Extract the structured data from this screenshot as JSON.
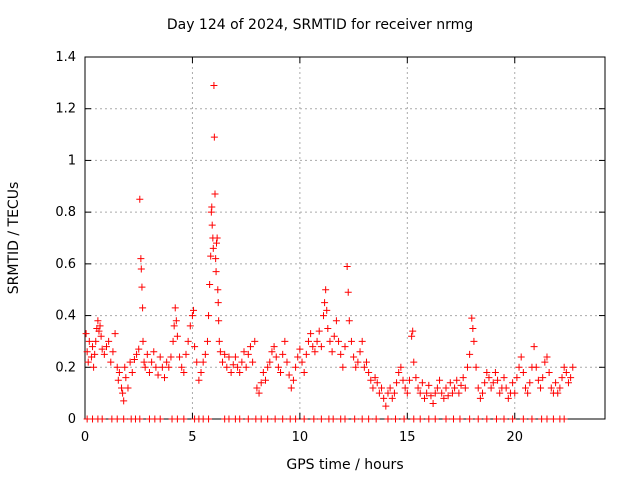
{
  "chart_data": {
    "type": "scatter",
    "title": "Day 124 of 2024, SRMTID for receiver nrmg",
    "xlabel": "GPS time / hours",
    "ylabel": "SRMTID / TECUs",
    "xlim": [
      0,
      24.2
    ],
    "ylim": [
      0,
      1.4
    ],
    "xticks": [
      0,
      5,
      10,
      15,
      20
    ],
    "xtick_labels": [
      "0",
      "5",
      "10",
      "15",
      "20"
    ],
    "yticks": [
      0,
      0.2,
      0.4,
      0.6,
      0.8,
      1.0,
      1.2,
      1.4
    ],
    "ytick_labels": [
      "0",
      "0.2",
      "0.4",
      "0.6",
      "0.8",
      "1",
      "1.2",
      "1.4"
    ],
    "grid": true,
    "marker": "+",
    "color": "#ff0000",
    "series": [
      {
        "name": "SRMTID",
        "points": [
          [
            0.05,
            0.33
          ],
          [
            0.1,
            0.26
          ],
          [
            0.15,
            0.22
          ],
          [
            0.2,
            0.3
          ],
          [
            0.3,
            0.24
          ],
          [
            0.35,
            0.28
          ],
          [
            0.4,
            0.2
          ],
          [
            0.45,
            0.25
          ],
          [
            0.5,
            0.3
          ],
          [
            0.55,
            0.35
          ],
          [
            0.6,
            0.38
          ],
          [
            0.65,
            0.34
          ],
          [
            0.7,
            0.36
          ],
          [
            0.75,
            0.32
          ],
          [
            0.8,
            0.27
          ],
          [
            0.9,
            0.25
          ],
          [
            1.0,
            0.28
          ],
          [
            1.1,
            0.3
          ],
          [
            1.2,
            0.22
          ],
          [
            1.3,
            0.26
          ],
          [
            1.4,
            0.33
          ],
          [
            1.5,
            0.2
          ],
          [
            1.55,
            0.15
          ],
          [
            1.6,
            0.18
          ],
          [
            1.7,
            0.12
          ],
          [
            1.75,
            0.1
          ],
          [
            1.8,
            0.07
          ],
          [
            1.85,
            0.2
          ],
          [
            1.9,
            0.16
          ],
          [
            2.0,
            0.12
          ],
          [
            2.1,
            0.22
          ],
          [
            2.2,
            0.18
          ],
          [
            2.3,
            0.23
          ],
          [
            2.4,
            0.25
          ],
          [
            2.5,
            0.27
          ],
          [
            2.55,
            0.85
          ],
          [
            2.6,
            0.62
          ],
          [
            2.62,
            0.58
          ],
          [
            2.65,
            0.51
          ],
          [
            2.68,
            0.43
          ],
          [
            2.7,
            0.3
          ],
          [
            2.75,
            0.22
          ],
          [
            2.8,
            0.2
          ],
          [
            2.9,
            0.25
          ],
          [
            3.0,
            0.18
          ],
          [
            3.1,
            0.22
          ],
          [
            3.2,
            0.26
          ],
          [
            3.3,
            0.2
          ],
          [
            3.4,
            0.17
          ],
          [
            3.5,
            0.24
          ],
          [
            3.6,
            0.2
          ],
          [
            3.7,
            0.16
          ],
          [
            3.8,
            0.22
          ],
          [
            3.9,
            0.2
          ],
          [
            4.0,
            0.24
          ],
          [
            4.1,
            0.3
          ],
          [
            4.15,
            0.36
          ],
          [
            4.2,
            0.43
          ],
          [
            4.25,
            0.38
          ],
          [
            4.3,
            0.32
          ],
          [
            4.4,
            0.24
          ],
          [
            4.5,
            0.2
          ],
          [
            4.6,
            0.18
          ],
          [
            4.7,
            0.25
          ],
          [
            4.8,
            0.3
          ],
          [
            4.9,
            0.36
          ],
          [
            5.0,
            0.4
          ],
          [
            5.05,
            0.42
          ],
          [
            5.1,
            0.28
          ],
          [
            5.2,
            0.22
          ],
          [
            5.3,
            0.15
          ],
          [
            5.4,
            0.18
          ],
          [
            5.5,
            0.22
          ],
          [
            5.6,
            0.25
          ],
          [
            5.7,
            0.3
          ],
          [
            5.75,
            0.4
          ],
          [
            5.8,
            0.52
          ],
          [
            5.85,
            0.63
          ],
          [
            5.88,
            0.8
          ],
          [
            5.9,
            0.82
          ],
          [
            5.92,
            0.75
          ],
          [
            5.95,
            0.7
          ],
          [
            5.97,
            0.66
          ],
          [
            6.0,
            1.29
          ],
          [
            6.02,
            1.09
          ],
          [
            6.05,
            0.87
          ],
          [
            6.08,
            0.62
          ],
          [
            6.1,
            0.57
          ],
          [
            6.12,
            0.68
          ],
          [
            6.15,
            0.7
          ],
          [
            6.18,
            0.5
          ],
          [
            6.2,
            0.45
          ],
          [
            6.22,
            0.38
          ],
          [
            6.25,
            0.3
          ],
          [
            6.3,
            0.26
          ],
          [
            6.4,
            0.22
          ],
          [
            6.5,
            0.25
          ],
          [
            6.6,
            0.2
          ],
          [
            6.7,
            0.24
          ],
          [
            6.8,
            0.18
          ],
          [
            6.9,
            0.21
          ],
          [
            7.0,
            0.24
          ],
          [
            7.1,
            0.2
          ],
          [
            7.2,
            0.18
          ],
          [
            7.3,
            0.22
          ],
          [
            7.4,
            0.26
          ],
          [
            7.5,
            0.2
          ],
          [
            7.6,
            0.25
          ],
          [
            7.7,
            0.28
          ],
          [
            7.8,
            0.22
          ],
          [
            7.9,
            0.3
          ],
          [
            8.0,
            0.12
          ],
          [
            8.1,
            0.1
          ],
          [
            8.2,
            0.14
          ],
          [
            8.3,
            0.18
          ],
          [
            8.4,
            0.15
          ],
          [
            8.5,
            0.2
          ],
          [
            8.6,
            0.22
          ],
          [
            8.7,
            0.26
          ],
          [
            8.8,
            0.28
          ],
          [
            8.9,
            0.24
          ],
          [
            9.0,
            0.2
          ],
          [
            9.1,
            0.18
          ],
          [
            9.2,
            0.25
          ],
          [
            9.3,
            0.3
          ],
          [
            9.4,
            0.22
          ],
          [
            9.5,
            0.17
          ],
          [
            9.6,
            0.12
          ],
          [
            9.7,
            0.15
          ],
          [
            9.8,
            0.2
          ],
          [
            9.9,
            0.24
          ],
          [
            10.0,
            0.27
          ],
          [
            10.1,
            0.22
          ],
          [
            10.2,
            0.18
          ],
          [
            10.3,
            0.25
          ],
          [
            10.4,
            0.3
          ],
          [
            10.5,
            0.33
          ],
          [
            10.6,
            0.28
          ],
          [
            10.7,
            0.26
          ],
          [
            10.8,
            0.3
          ],
          [
            10.9,
            0.34
          ],
          [
            11.0,
            0.28
          ],
          [
            11.1,
            0.4
          ],
          [
            11.15,
            0.45
          ],
          [
            11.2,
            0.5
          ],
          [
            11.25,
            0.42
          ],
          [
            11.3,
            0.35
          ],
          [
            11.4,
            0.3
          ],
          [
            11.5,
            0.26
          ],
          [
            11.6,
            0.32
          ],
          [
            11.7,
            0.38
          ],
          [
            11.8,
            0.3
          ],
          [
            11.9,
            0.25
          ],
          [
            12.0,
            0.2
          ],
          [
            12.1,
            0.28
          ],
          [
            12.2,
            0.59
          ],
          [
            12.25,
            0.49
          ],
          [
            12.3,
            0.38
          ],
          [
            12.4,
            0.3
          ],
          [
            12.5,
            0.24
          ],
          [
            12.6,
            0.2
          ],
          [
            12.7,
            0.22
          ],
          [
            12.8,
            0.26
          ],
          [
            12.9,
            0.3
          ],
          [
            13.0,
            0.2
          ],
          [
            13.1,
            0.22
          ],
          [
            13.2,
            0.18
          ],
          [
            13.3,
            0.15
          ],
          [
            13.4,
            0.12
          ],
          [
            13.5,
            0.16
          ],
          [
            13.6,
            0.14
          ],
          [
            13.7,
            0.1
          ],
          [
            13.8,
            0.12
          ],
          [
            13.9,
            0.08
          ],
          [
            14.0,
            0.05
          ],
          [
            14.1,
            0.1
          ],
          [
            14.2,
            0.12
          ],
          [
            14.3,
            0.08
          ],
          [
            14.4,
            0.1
          ],
          [
            14.5,
            0.14
          ],
          [
            14.6,
            0.18
          ],
          [
            14.7,
            0.2
          ],
          [
            14.8,
            0.15
          ],
          [
            14.9,
            0.12
          ],
          [
            15.0,
            0.1
          ],
          [
            15.1,
            0.15
          ],
          [
            15.2,
            0.32
          ],
          [
            15.25,
            0.34
          ],
          [
            15.3,
            0.22
          ],
          [
            15.4,
            0.16
          ],
          [
            15.5,
            0.12
          ],
          [
            15.6,
            0.1
          ],
          [
            15.7,
            0.14
          ],
          [
            15.8,
            0.08
          ],
          [
            15.9,
            0.1
          ],
          [
            16.0,
            0.13
          ],
          [
            16.1,
            0.09
          ],
          [
            16.2,
            0.06
          ],
          [
            16.3,
            0.1
          ],
          [
            16.4,
            0.12
          ],
          [
            16.5,
            0.15
          ],
          [
            16.6,
            0.1
          ],
          [
            16.7,
            0.08
          ],
          [
            16.8,
            0.12
          ],
          [
            16.9,
            0.09
          ],
          [
            17.0,
            0.14
          ],
          [
            17.1,
            0.1
          ],
          [
            17.2,
            0.12
          ],
          [
            17.3,
            0.15
          ],
          [
            17.4,
            0.1
          ],
          [
            17.5,
            0.13
          ],
          [
            17.6,
            0.16
          ],
          [
            17.7,
            0.12
          ],
          [
            17.8,
            0.2
          ],
          [
            17.9,
            0.25
          ],
          [
            18.0,
            0.39
          ],
          [
            18.05,
            0.35
          ],
          [
            18.1,
            0.3
          ],
          [
            18.2,
            0.2
          ],
          [
            18.3,
            0.12
          ],
          [
            18.4,
            0.08
          ],
          [
            18.5,
            0.1
          ],
          [
            18.6,
            0.14
          ],
          [
            18.7,
            0.18
          ],
          [
            18.8,
            0.16
          ],
          [
            18.9,
            0.12
          ],
          [
            19.0,
            0.14
          ],
          [
            19.1,
            0.18
          ],
          [
            19.2,
            0.15
          ],
          [
            19.3,
            0.1
          ],
          [
            19.4,
            0.12
          ],
          [
            19.5,
            0.16
          ],
          [
            19.6,
            0.12
          ],
          [
            19.7,
            0.08
          ],
          [
            19.8,
            0.1
          ],
          [
            19.9,
            0.14
          ],
          [
            20.0,
            0.1
          ],
          [
            20.1,
            0.16
          ],
          [
            20.2,
            0.2
          ],
          [
            20.3,
            0.24
          ],
          [
            20.4,
            0.18
          ],
          [
            20.5,
            0.12
          ],
          [
            20.6,
            0.1
          ],
          [
            20.7,
            0.14
          ],
          [
            20.8,
            0.2
          ],
          [
            20.9,
            0.28
          ],
          [
            21.0,
            0.2
          ],
          [
            21.1,
            0.15
          ],
          [
            21.2,
            0.12
          ],
          [
            21.3,
            0.16
          ],
          [
            21.4,
            0.22
          ],
          [
            21.5,
            0.24
          ],
          [
            21.6,
            0.18
          ],
          [
            21.7,
            0.12
          ],
          [
            21.8,
            0.1
          ],
          [
            21.9,
            0.14
          ],
          [
            22.0,
            0.1
          ],
          [
            22.1,
            0.12
          ],
          [
            22.2,
            0.16
          ],
          [
            22.3,
            0.2
          ],
          [
            22.4,
            0.18
          ],
          [
            22.5,
            0.14
          ],
          [
            22.6,
            0.16
          ],
          [
            22.7,
            0.2
          ]
        ],
        "zero_points": [
          0.1,
          0.35,
          0.6,
          0.8,
          1.25,
          1.5,
          1.8,
          2.15,
          2.35,
          2.55,
          3.0,
          3.25,
          3.5,
          4.05,
          4.3,
          4.6,
          5.1,
          5.3,
          5.5,
          5.75,
          6.5,
          6.7,
          7.0,
          7.2,
          7.6,
          7.95,
          8.2,
          8.5,
          8.85,
          9.2,
          9.55,
          9.8,
          10.2,
          10.65,
          11.0,
          11.35,
          11.55,
          11.9,
          12.1,
          12.55,
          12.9,
          13.2,
          13.55,
          14.1,
          14.45,
          14.85,
          15.3,
          15.6,
          16.0,
          16.3,
          16.8,
          17.15,
          17.45,
          17.9,
          18.3,
          18.7,
          19.15,
          19.5,
          19.9,
          20.4,
          20.8,
          21.25,
          21.5,
          21.8,
          22.1,
          22.3
        ]
      }
    ]
  }
}
